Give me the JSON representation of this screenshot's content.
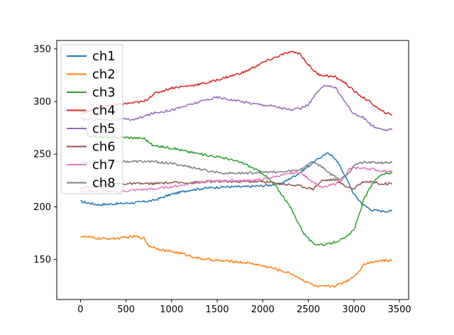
{
  "chart_data": {
    "type": "line",
    "xlim": [
      -260,
      3600
    ],
    "ylim": [
      112,
      358
    ],
    "x_ticks": [
      0,
      500,
      1000,
      1500,
      2000,
      2500,
      3000,
      3500
    ],
    "y_ticks": [
      150,
      200,
      250,
      300,
      350
    ],
    "legend_position": "top-left",
    "grid": false,
    "series": [
      {
        "name": "ch1",
        "color": "#1f77b4",
        "points": [
          [
            0,
            205
          ],
          [
            200,
            202
          ],
          [
            400,
            203
          ],
          [
            600,
            204
          ],
          [
            800,
            206
          ],
          [
            1000,
            212
          ],
          [
            1200,
            216
          ],
          [
            1400,
            218
          ],
          [
            1600,
            219
          ],
          [
            1800,
            219
          ],
          [
            2000,
            220
          ],
          [
            2200,
            222
          ],
          [
            2400,
            232
          ],
          [
            2600,
            245
          ],
          [
            2700,
            251
          ],
          [
            2800,
            246
          ],
          [
            2900,
            230
          ],
          [
            3000,
            212
          ],
          [
            3100,
            202
          ],
          [
            3200,
            197
          ],
          [
            3300,
            196
          ],
          [
            3420,
            196
          ]
        ]
      },
      {
        "name": "ch2",
        "color": "#ff7f0e",
        "points": [
          [
            0,
            172
          ],
          [
            200,
            170
          ],
          [
            400,
            170
          ],
          [
            600,
            172
          ],
          [
            700,
            170
          ],
          [
            750,
            163
          ],
          [
            900,
            159
          ],
          [
            1100,
            156
          ],
          [
            1300,
            151
          ],
          [
            1500,
            149
          ],
          [
            1700,
            148
          ],
          [
            1900,
            146
          ],
          [
            2100,
            142
          ],
          [
            2300,
            137
          ],
          [
            2500,
            128
          ],
          [
            2600,
            124
          ],
          [
            2800,
            125
          ],
          [
            2950,
            131
          ],
          [
            3050,
            138
          ],
          [
            3100,
            145
          ],
          [
            3200,
            148
          ],
          [
            3300,
            149
          ],
          [
            3420,
            149
          ]
        ]
      },
      {
        "name": "ch3",
        "color": "#2ca02c",
        "points": [
          [
            0,
            277
          ],
          [
            100,
            267
          ],
          [
            300,
            266
          ],
          [
            500,
            266
          ],
          [
            700,
            265
          ],
          [
            800,
            258
          ],
          [
            1000,
            256
          ],
          [
            1200,
            252
          ],
          [
            1400,
            249
          ],
          [
            1600,
            246
          ],
          [
            1800,
            241
          ],
          [
            2000,
            232
          ],
          [
            2150,
            219
          ],
          [
            2300,
            200
          ],
          [
            2450,
            175
          ],
          [
            2550,
            165
          ],
          [
            2700,
            164
          ],
          [
            2900,
            170
          ],
          [
            3000,
            178
          ],
          [
            3050,
            190
          ],
          [
            3100,
            205
          ],
          [
            3200,
            222
          ],
          [
            3300,
            231
          ],
          [
            3420,
            232
          ]
        ]
      },
      {
        "name": "ch4",
        "color": "#d62728",
        "points": [
          [
            0,
            288
          ],
          [
            150,
            293
          ],
          [
            300,
            296
          ],
          [
            500,
            298
          ],
          [
            700,
            300
          ],
          [
            800,
            307
          ],
          [
            1000,
            313
          ],
          [
            1200,
            315
          ],
          [
            1400,
            318
          ],
          [
            1600,
            323
          ],
          [
            1800,
            328
          ],
          [
            2000,
            337
          ],
          [
            2200,
            344
          ],
          [
            2300,
            347
          ],
          [
            2400,
            346
          ],
          [
            2500,
            335
          ],
          [
            2600,
            326
          ],
          [
            2800,
            323
          ],
          [
            2900,
            318
          ],
          [
            3000,
            310
          ],
          [
            3100,
            304
          ],
          [
            3200,
            298
          ],
          [
            3300,
            291
          ],
          [
            3420,
            287
          ]
        ]
      },
      {
        "name": "ch5",
        "color": "#9467bd",
        "points": [
          [
            0,
            283
          ],
          [
            200,
            283
          ],
          [
            400,
            283
          ],
          [
            600,
            283
          ],
          [
            800,
            289
          ],
          [
            1000,
            292
          ],
          [
            1200,
            297
          ],
          [
            1400,
            302
          ],
          [
            1500,
            304
          ],
          [
            1700,
            301
          ],
          [
            1900,
            298
          ],
          [
            2100,
            296
          ],
          [
            2300,
            292
          ],
          [
            2400,
            293
          ],
          [
            2500,
            297
          ],
          [
            2600,
            309
          ],
          [
            2700,
            316
          ],
          [
            2800,
            313
          ],
          [
            2900,
            300
          ],
          [
            3000,
            288
          ],
          [
            3100,
            285
          ],
          [
            3200,
            277
          ],
          [
            3300,
            273
          ],
          [
            3420,
            273
          ]
        ]
      },
      {
        "name": "ch6",
        "color": "#8c564b",
        "points": [
          [
            0,
            218
          ],
          [
            200,
            220
          ],
          [
            400,
            222
          ],
          [
            600,
            222
          ],
          [
            800,
            222
          ],
          [
            1000,
            223
          ],
          [
            1200,
            223
          ],
          [
            1400,
            224
          ],
          [
            1600,
            224
          ],
          [
            1800,
            224
          ],
          [
            2000,
            224
          ],
          [
            2200,
            222
          ],
          [
            2400,
            220
          ],
          [
            2550,
            217
          ],
          [
            2650,
            225
          ],
          [
            2800,
            226
          ],
          [
            2900,
            220
          ],
          [
            3000,
            217
          ],
          [
            3100,
            224
          ],
          [
            3200,
            224
          ],
          [
            3300,
            222
          ],
          [
            3420,
            222
          ]
        ]
      },
      {
        "name": "ch7",
        "color": "#e377c2",
        "points": [
          [
            0,
            215
          ],
          [
            200,
            215
          ],
          [
            400,
            214
          ],
          [
            600,
            216
          ],
          [
            800,
            217
          ],
          [
            1000,
            219
          ],
          [
            1200,
            222
          ],
          [
            1400,
            224
          ],
          [
            1600,
            225
          ],
          [
            1800,
            225
          ],
          [
            2000,
            226
          ],
          [
            2200,
            230
          ],
          [
            2400,
            233
          ],
          [
            2550,
            224
          ],
          [
            2650,
            218
          ],
          [
            2800,
            222
          ],
          [
            2900,
            228
          ],
          [
            2950,
            236
          ],
          [
            3050,
            237
          ],
          [
            3200,
            236
          ],
          [
            3300,
            234
          ],
          [
            3420,
            234
          ]
        ]
      },
      {
        "name": "ch8",
        "color": "#7f7f7f",
        "points": [
          [
            0,
            242
          ],
          [
            200,
            243
          ],
          [
            400,
            243
          ],
          [
            600,
            243
          ],
          [
            800,
            243
          ],
          [
            1000,
            241
          ],
          [
            1200,
            238
          ],
          [
            1400,
            234
          ],
          [
            1600,
            232
          ],
          [
            1800,
            232
          ],
          [
            2000,
            233
          ],
          [
            2200,
            233
          ],
          [
            2400,
            235
          ],
          [
            2550,
            243
          ],
          [
            2650,
            238
          ],
          [
            2750,
            231
          ],
          [
            2850,
            226
          ],
          [
            2950,
            233
          ],
          [
            3000,
            240
          ],
          [
            3100,
            242
          ],
          [
            3300,
            242
          ],
          [
            3420,
            242
          ]
        ]
      }
    ]
  }
}
